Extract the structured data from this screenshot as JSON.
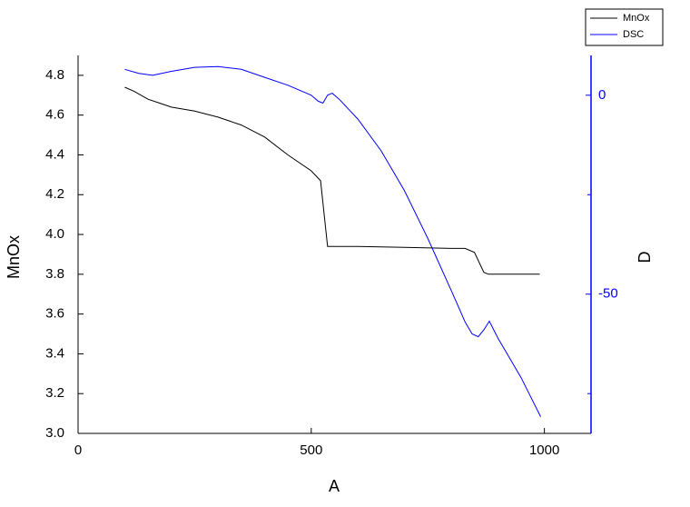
{
  "chart_data": {
    "type": "line",
    "x_label": "A",
    "y_label": "MnOx",
    "y2_label": "D",
    "xlim": [
      0,
      1100
    ],
    "xticks": [
      0,
      500,
      1000
    ],
    "ylim": [
      3.0,
      4.9
    ],
    "yticks": [
      {
        "value": 3.0,
        "label": "3.0"
      },
      3.2,
      3.4,
      3.6,
      3.8,
      {
        "value": 4.0,
        "label": "4.0"
      },
      4.2,
      4.4,
      4.6,
      4.8
    ],
    "y2lim": [
      -85,
      10
    ],
    "y2ticks": [
      -50,
      0
    ],
    "y2minorticks": [
      -75,
      -25
    ],
    "series": [
      {
        "name": "MnOx",
        "color": "#000000",
        "x": [
          100,
          120,
          150,
          175,
          200,
          250,
          300,
          350,
          400,
          450,
          500,
          520,
          535,
          600,
          700,
          800,
          830,
          850,
          870,
          880,
          990
        ],
        "values": [
          4.74,
          4.72,
          4.68,
          4.66,
          4.64,
          4.62,
          4.59,
          4.55,
          4.49,
          4.4,
          4.32,
          4.27,
          3.94,
          3.94,
          3.935,
          3.93,
          3.93,
          3.91,
          3.81,
          3.8,
          3.8
        ]
      },
      {
        "name": "DSC",
        "color": "#0000ff",
        "axis": "y2",
        "x": [
          100,
          130,
          160,
          200,
          250,
          300,
          350,
          400,
          450,
          500,
          515,
          525,
          535,
          545,
          560,
          600,
          650,
          700,
          750,
          800,
          830,
          845,
          858,
          870,
          882,
          900,
          950,
          992
        ],
        "values": [
          6.5,
          5.5,
          5,
          6,
          7,
          7.2,
          6.5,
          4.5,
          2.5,
          0,
          -1.5,
          -2,
          0,
          0.5,
          -1,
          -6,
          -14,
          -24,
          -36,
          -49,
          -57,
          -60,
          -60.7,
          -59,
          -56.8,
          -61,
          -71,
          -80.8
        ]
      }
    ]
  }
}
